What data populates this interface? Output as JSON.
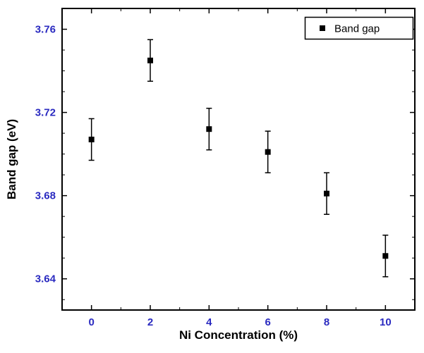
{
  "chart_data": {
    "type": "scatter",
    "title": "",
    "xlabel": "Ni Concentration (%)",
    "ylabel": "Band gap (eV)",
    "xlim": [
      -1,
      11
    ],
    "ylim": [
      3.625,
      3.77
    ],
    "x_major_ticks": [
      0,
      2,
      4,
      6,
      8,
      10
    ],
    "x_minor_step": 1,
    "y_major_ticks": [
      3.64,
      3.68,
      3.72,
      3.76
    ],
    "y_tick_decimals": 2,
    "y_minor_step": 0.01,
    "grid": false,
    "legend_position": "top-right",
    "series": [
      {
        "name": "Band gap",
        "marker": "square",
        "color": "#000000",
        "x": [
          0,
          2,
          4,
          6,
          8,
          10
        ],
        "y": [
          3.707,
          3.745,
          3.712,
          3.701,
          3.681,
          3.651
        ],
        "yerr": [
          0.01,
          0.01,
          0.01,
          0.01,
          0.01,
          0.01
        ]
      }
    ]
  },
  "legend": {
    "label": "Band gap"
  },
  "axes": {
    "x_label": "Ni Concentration (%)",
    "y_label": "Band gap (eV)"
  },
  "colors": {
    "tick_label": "#2a2ac0",
    "axis_label": "#000000",
    "frame": "#000000",
    "marker": "#000000",
    "background": "#ffffff"
  }
}
